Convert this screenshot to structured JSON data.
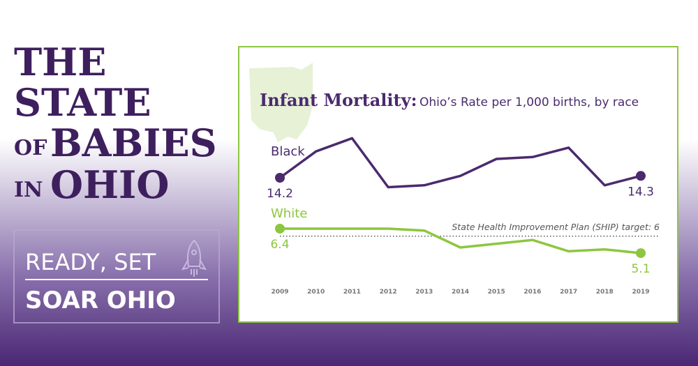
{
  "header": {
    "lines": [
      "THE",
      "STATE",
      "OF",
      "BABIES",
      "IN",
      "OHIO"
    ],
    "badge": [
      "READY, SET",
      "SOAR OHIO"
    ]
  },
  "chart_data": {
    "type": "line",
    "title": "Infant Mortality:",
    "subtitle": "Ohio’s Rate per 1,000 births, by race",
    "categories": [
      "2009",
      "2010",
      "2011",
      "2012",
      "2013",
      "2014",
      "2015",
      "2016",
      "2017",
      "2018",
      "2019"
    ],
    "series": [
      {
        "name": "Black",
        "color": "#4b2a6e",
        "values": [
          14.2,
          15.6,
          16.3,
          13.7,
          13.8,
          14.3,
          15.2,
          15.3,
          15.8,
          13.8,
          14.3
        ]
      },
      {
        "name": "White",
        "color": "#8dc63f",
        "values": [
          6.4,
          6.4,
          6.4,
          6.4,
          6.3,
          5.4,
          5.6,
          5.8,
          5.2,
          5.3,
          5.1
        ]
      }
    ],
    "target": 6,
    "target_label": "State Health Improvement Plan (SHIP) target: 6"
  }
}
